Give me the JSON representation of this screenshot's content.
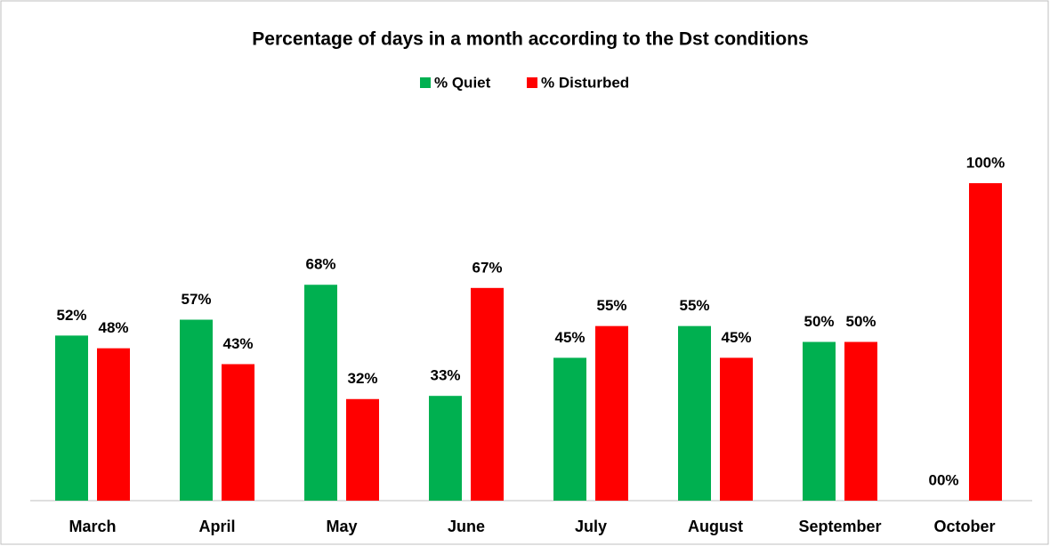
{
  "chart_data": {
    "type": "bar",
    "title": "Percentage of days in a month according to the Dst conditions",
    "categories": [
      "March",
      "April",
      "May",
      "June",
      "July",
      "August",
      "September",
      "October"
    ],
    "series": [
      {
        "name": "% Quiet",
        "color": "#00b050",
        "values": [
          52,
          57,
          68,
          33,
          45,
          55,
          50,
          0
        ],
        "value_labels": [
          "52%",
          "57%",
          "68%",
          "33%",
          "45%",
          "55%",
          "50%",
          "00%"
        ]
      },
      {
        "name": "% Disturbed",
        "color": "#ff0000",
        "values": [
          48,
          43,
          32,
          67,
          55,
          45,
          50,
          100
        ],
        "value_labels": [
          "48%",
          "43%",
          "32%",
          "67%",
          "55%",
          "45%",
          "50%",
          "100%"
        ]
      }
    ],
    "ylim": [
      0,
      100
    ],
    "legend": "top"
  }
}
